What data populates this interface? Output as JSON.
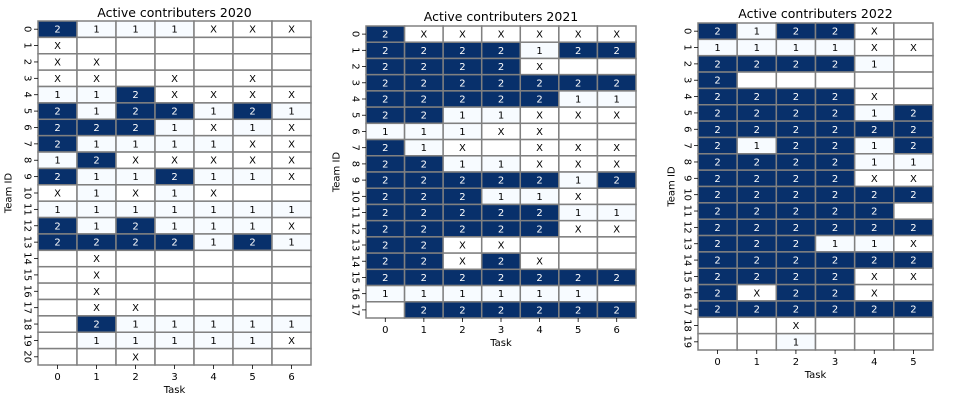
{
  "colors": {
    "two": "#08306b",
    "one": "#f7fbff",
    "x": "#ffffff",
    "empty": "#ffffff",
    "grid": "#808080",
    "text_dark": "#000000",
    "text_light": "#ffffff"
  },
  "chart_data": [
    {
      "type": "heatmap",
      "title": "Active contributers 2020",
      "xlabel": "Task",
      "ylabel": "Team ID",
      "x_ticks": [
        "0",
        "1",
        "2",
        "3",
        "4",
        "5",
        "6"
      ],
      "y_ticks": [
        "0",
        "1",
        "2",
        "3",
        "4",
        "5",
        "6",
        "7",
        "8",
        "9",
        "10",
        "11",
        "12",
        "13",
        "14",
        "15",
        "16",
        "17",
        "18",
        "19",
        "20"
      ],
      "cells": [
        [
          "2",
          "1",
          "1",
          "1",
          "X",
          "X",
          "X"
        ],
        [
          "X",
          "",
          "",
          "",
          "",
          "",
          ""
        ],
        [
          "X",
          "X",
          "",
          "",
          "",
          "",
          ""
        ],
        [
          "X",
          "X",
          "",
          "X",
          "",
          "X",
          ""
        ],
        [
          "1",
          "1",
          "2",
          "X",
          "X",
          "X",
          "X"
        ],
        [
          "2",
          "1",
          "2",
          "2",
          "1",
          "2",
          "1"
        ],
        [
          "2",
          "2",
          "2",
          "1",
          "X",
          "1",
          "X"
        ],
        [
          "2",
          "1",
          "1",
          "1",
          "1",
          "X",
          "X"
        ],
        [
          "1",
          "2",
          "X",
          "X",
          "X",
          "X",
          "X"
        ],
        [
          "2",
          "1",
          "1",
          "2",
          "1",
          "1",
          "X"
        ],
        [
          "X",
          "1",
          "X",
          "1",
          "X",
          "",
          ""
        ],
        [
          "1",
          "1",
          "1",
          "1",
          "1",
          "1",
          "1"
        ],
        [
          "2",
          "1",
          "2",
          "1",
          "1",
          "1",
          "X"
        ],
        [
          "2",
          "2",
          "2",
          "2",
          "1",
          "2",
          "1"
        ],
        [
          "",
          "X",
          "",
          "",
          "",
          "",
          ""
        ],
        [
          "",
          "X",
          "",
          "",
          "",
          "",
          ""
        ],
        [
          "",
          "X",
          "",
          "",
          "",
          "",
          ""
        ],
        [
          "",
          "X",
          "X",
          "",
          "",
          "",
          ""
        ],
        [
          "",
          "2",
          "1",
          "1",
          "1",
          "1",
          "1"
        ],
        [
          "",
          "1",
          "1",
          "1",
          "1",
          "1",
          "X"
        ],
        [
          "",
          "",
          "X",
          "",
          "",
          "",
          ""
        ]
      ]
    },
    {
      "type": "heatmap",
      "title": "Active contributers 2021",
      "xlabel": "Task",
      "ylabel": "Team ID",
      "x_ticks": [
        "0",
        "1",
        "2",
        "3",
        "4",
        "5",
        "6"
      ],
      "y_ticks": [
        "0",
        "1",
        "2",
        "3",
        "4",
        "5",
        "6",
        "7",
        "8",
        "9",
        "10",
        "11",
        "12",
        "13",
        "14",
        "15",
        "16",
        "17"
      ],
      "cells": [
        [
          "2",
          "X",
          "X",
          "X",
          "X",
          "X",
          "X"
        ],
        [
          "2",
          "2",
          "2",
          "2",
          "1",
          "2",
          "2"
        ],
        [
          "2",
          "2",
          "2",
          "2",
          "X",
          "",
          ""
        ],
        [
          "2",
          "2",
          "2",
          "2",
          "2",
          "2",
          "2"
        ],
        [
          "2",
          "2",
          "2",
          "2",
          "2",
          "1",
          "1"
        ],
        [
          "2",
          "2",
          "1",
          "1",
          "X",
          "X",
          "X"
        ],
        [
          "1",
          "1",
          "1",
          "X",
          "X",
          "",
          ""
        ],
        [
          "2",
          "1",
          "X",
          "",
          "X",
          "X",
          "X"
        ],
        [
          "2",
          "2",
          "1",
          "1",
          "X",
          "X",
          "X"
        ],
        [
          "2",
          "2",
          "2",
          "2",
          "2",
          "1",
          "2"
        ],
        [
          "2",
          "2",
          "2",
          "1",
          "1",
          "X",
          ""
        ],
        [
          "2",
          "2",
          "2",
          "2",
          "2",
          "1",
          "1"
        ],
        [
          "2",
          "2",
          "2",
          "2",
          "2",
          "X",
          "X"
        ],
        [
          "2",
          "2",
          "X",
          "X",
          "",
          "",
          ""
        ],
        [
          "2",
          "2",
          "X",
          "2",
          "X",
          "",
          ""
        ],
        [
          "2",
          "2",
          "2",
          "2",
          "2",
          "2",
          "2"
        ],
        [
          "1",
          "1",
          "1",
          "1",
          "1",
          "1",
          ""
        ],
        [
          "",
          "2",
          "2",
          "2",
          "2",
          "2",
          "2"
        ]
      ]
    },
    {
      "type": "heatmap",
      "title": "Active contributers 2022",
      "xlabel": "Task",
      "ylabel": "Team ID",
      "x_ticks": [
        "0",
        "1",
        "2",
        "3",
        "4",
        "5"
      ],
      "y_ticks": [
        "0",
        "1",
        "2",
        "3",
        "4",
        "5",
        "6",
        "7",
        "8",
        "9",
        "10",
        "11",
        "12",
        "13",
        "14",
        "15",
        "16",
        "17",
        "18",
        "19"
      ],
      "cells": [
        [
          "2",
          "1",
          "2",
          "2",
          "X",
          ""
        ],
        [
          "1",
          "1",
          "1",
          "1",
          "X",
          "X"
        ],
        [
          "2",
          "2",
          "2",
          "2",
          "1",
          ""
        ],
        [
          "2",
          "",
          "",
          "",
          "",
          ""
        ],
        [
          "2",
          "2",
          "2",
          "2",
          "X",
          ""
        ],
        [
          "2",
          "2",
          "2",
          "2",
          "1",
          "2"
        ],
        [
          "2",
          "2",
          "2",
          "2",
          "2",
          "2"
        ],
        [
          "2",
          "1",
          "2",
          "2",
          "1",
          "2"
        ],
        [
          "2",
          "2",
          "2",
          "2",
          "1",
          "1"
        ],
        [
          "2",
          "2",
          "2",
          "2",
          "X",
          "X"
        ],
        [
          "2",
          "2",
          "2",
          "2",
          "2",
          "2"
        ],
        [
          "2",
          "2",
          "2",
          "2",
          "2",
          ""
        ],
        [
          "2",
          "2",
          "2",
          "2",
          "2",
          "2"
        ],
        [
          "2",
          "2",
          "2",
          "1",
          "1",
          "X"
        ],
        [
          "2",
          "2",
          "2",
          "2",
          "2",
          "2"
        ],
        [
          "2",
          "2",
          "2",
          "2",
          "X",
          "X"
        ],
        [
          "2",
          "X",
          "2",
          "2",
          "X",
          ""
        ],
        [
          "2",
          "2",
          "2",
          "2",
          "2",
          "2"
        ],
        [
          "",
          "",
          "X",
          "",
          "",
          ""
        ],
        [
          "",
          "",
          "1",
          "",
          "",
          ""
        ]
      ]
    }
  ]
}
